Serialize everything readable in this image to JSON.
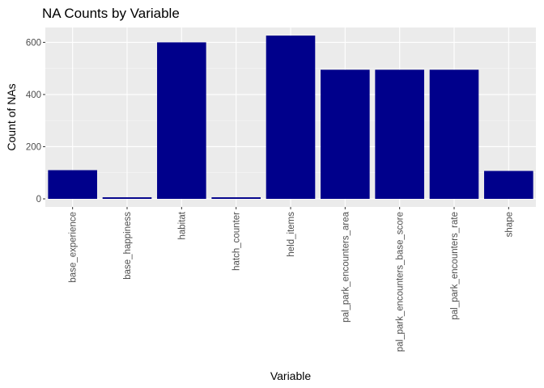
{
  "chart_data": {
    "type": "bar",
    "title": "NA Counts by Variable",
    "xlabel": "Variable",
    "ylabel": "Count of NAs",
    "categories": [
      "base_experience",
      "base_happiness",
      "habitat",
      "hatch_counter",
      "held_items",
      "pal_park_encounters_area",
      "pal_park_encounters_base_score",
      "pal_park_encounters_rate",
      "shape"
    ],
    "values": [
      110,
      6,
      600,
      6,
      626,
      495,
      495,
      495,
      107
    ],
    "yticks": [
      0,
      200,
      400,
      600
    ],
    "ylim": [
      -31,
      657
    ],
    "grid": true,
    "legend": "none",
    "colors": {
      "bar": "#00008B",
      "panel_background": "#EBEBEB",
      "grid_major": "#FFFFFF",
      "grid_minor": "#F5F5F5",
      "tick_label": "#4D4D4D"
    }
  }
}
